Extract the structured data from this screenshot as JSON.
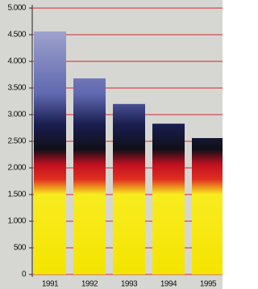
{
  "chart_data": {
    "type": "bar",
    "categories": [
      "1991",
      "1992",
      "1993",
      "1994",
      "1995"
    ],
    "values": [
      4560,
      3680,
      3200,
      2830,
      2560
    ],
    "ylim": [
      0,
      5000
    ],
    "yticks": [
      {
        "value": 0,
        "label": "0"
      },
      {
        "value": 500,
        "label": "500"
      },
      {
        "value": 1000,
        "label": "1.000"
      },
      {
        "value": 1500,
        "label": "1.500"
      },
      {
        "value": 2000,
        "label": "2.000"
      },
      {
        "value": 2500,
        "label": "2.500"
      },
      {
        "value": 3000,
        "label": "3.000"
      },
      {
        "value": 3500,
        "label": "3.500"
      },
      {
        "value": 4000,
        "label": "4.000"
      },
      {
        "value": 4500,
        "label": "4.500"
      },
      {
        "value": 5000,
        "label": "5.000"
      }
    ],
    "grid": true,
    "grid_color": "#d8262e"
  }
}
